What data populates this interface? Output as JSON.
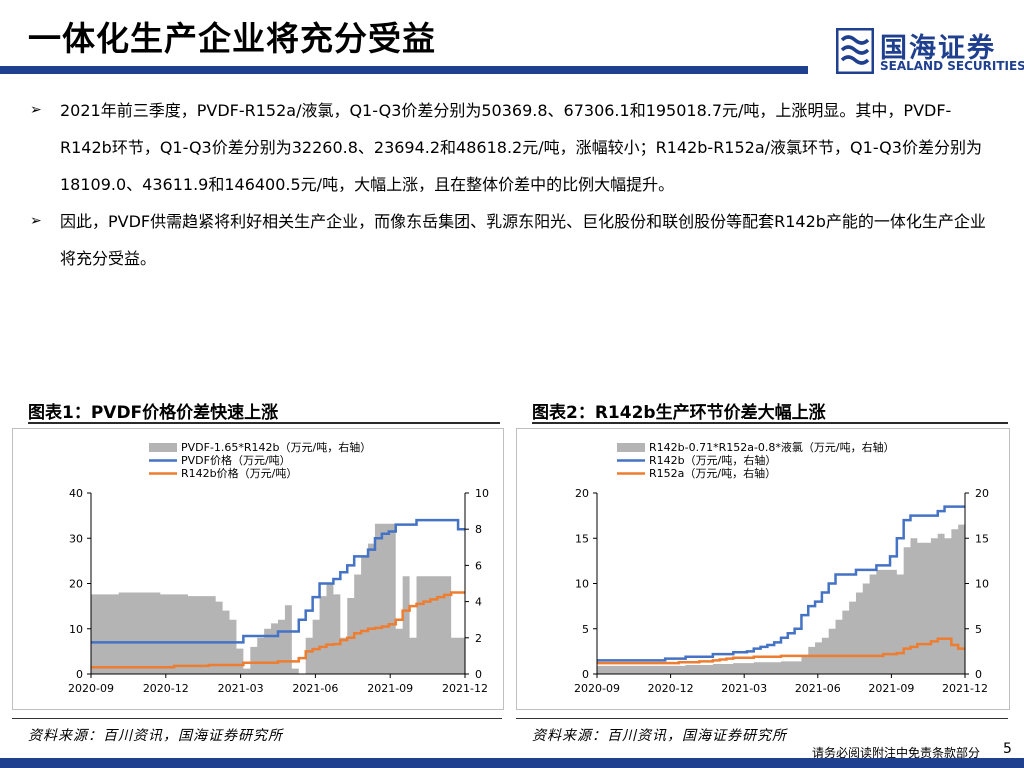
{
  "page": {
    "title": "一体化生产企业将充分受益",
    "logo_cn": "国海证券",
    "logo_en": "SEALAND SECURITIES",
    "bullets": [
      "2021年前三季度，PVDF-R152a/液氯，Q1-Q3价差分别为50369.8、67306.1和195018.7元/吨，上涨明显。其中，PVDF-R142b环节，Q1-Q3价差分别为32260.8、23694.2和48618.2元/吨，涨幅较小；R142b-R152a/液氯环节，Q1-Q3价差分别为18109.0、43611.9和146400.5元/吨，大幅上涨，且在整体价差中的比例大幅提升。",
      "因此，PVDF供需趋紧将利好相关生产企业，而像东岳集团、乳源东阳光、巨化股份和联创股份等配套R142b产能的一体化生产企业将充分受益。"
    ],
    "bullet_mark": "➢",
    "source1": "资料来源：百川资讯，国海证券研究所",
    "source2": "资料来源：百川资讯，国海证券研究所",
    "disclaimer": "请务必阅读附注中免责条款部分",
    "page_number": "5"
  },
  "chart_data": [
    {
      "type": "line",
      "title": "图表1：PVDF价格价差快速上涨",
      "x_ticks": [
        "2020-09",
        "2020-12",
        "2021-03",
        "2021-06",
        "2021-09",
        "2021-12"
      ],
      "ylim": [
        0,
        40
      ],
      "y_ticks": [
        0,
        10,
        20,
        30,
        40
      ],
      "y2lim": [
        0,
        10
      ],
      "y2_ticks": [
        0,
        2,
        4,
        6,
        8,
        10
      ],
      "legend_position": "top",
      "series": [
        {
          "name": "PVDF-1.65*R142b（万元/吨，右轴）",
          "kind": "area",
          "axis": "right",
          "color": "#b4b4b4",
          "values": [
            4.4,
            4.4,
            4.4,
            4.4,
            4.5,
            4.5,
            4.5,
            4.5,
            4.5,
            4.5,
            4.4,
            4.4,
            4.4,
            4.4,
            4.3,
            4.3,
            4.3,
            4.3,
            4.0,
            3.5,
            3.0,
            1.4,
            0.3,
            1.5,
            2.0,
            2.5,
            2.8,
            3.0,
            3.8,
            0.3,
            0,
            2.0,
            3.0,
            4.3,
            5.0,
            4.4,
            2.0,
            4.2,
            5.5,
            6.5,
            7.2,
            8.3,
            8.3,
            8.3,
            2.5,
            5.4,
            2.0,
            5.4,
            5.4,
            5.4,
            5.4,
            5.4,
            2.0,
            2.0,
            2.0
          ]
        },
        {
          "name": "PVDF价格（万元/吨）",
          "kind": "line",
          "axis": "left",
          "color": "#4472c4",
          "values": [
            7.0,
            7.0,
            7.0,
            7.0,
            7.0,
            7.0,
            7.0,
            7.0,
            7.0,
            7.0,
            7.0,
            7.0,
            7.0,
            7.0,
            7.0,
            7.0,
            7.0,
            7.0,
            7.0,
            7.0,
            7.0,
            7.0,
            8.4,
            8.4,
            8.4,
            8.4,
            8.4,
            9.4,
            9.4,
            9.4,
            12.0,
            14.0,
            17.0,
            20.0,
            20.0,
            21.0,
            22.5,
            24.0,
            26.0,
            26.0,
            27.5,
            30.0,
            31.0,
            31.5,
            33.0,
            33.0,
            33.0,
            34.0,
            34.0,
            34.0,
            34.0,
            34.0,
            34.0,
            32.0,
            32.0
          ]
        },
        {
          "name": "R142b价格（万元/吨）",
          "kind": "line",
          "axis": "left",
          "color": "#ed7d31",
          "values": [
            1.5,
            1.5,
            1.5,
            1.5,
            1.5,
            1.5,
            1.5,
            1.5,
            1.5,
            1.5,
            1.5,
            1.5,
            1.8,
            1.8,
            1.8,
            1.8,
            1.8,
            2.0,
            2.0,
            2.0,
            2.0,
            2.0,
            2.5,
            2.5,
            2.5,
            2.5,
            2.5,
            2.8,
            2.8,
            2.8,
            3.5,
            5.0,
            5.5,
            6.0,
            6.5,
            6.6,
            7.5,
            8.0,
            9.0,
            9.5,
            10.0,
            10.2,
            10.5,
            11.0,
            12.0,
            14.0,
            15.0,
            15.5,
            16.0,
            16.5,
            17.0,
            17.5,
            18.0,
            18.0,
            18.0
          ]
        }
      ]
    },
    {
      "type": "line",
      "title": "图表2：R142b生产环节价差大幅上涨",
      "x_ticks": [
        "2020-09",
        "2020-12",
        "2021-03",
        "2021-06",
        "2021-09",
        "2021-12"
      ],
      "ylim": [
        0,
        20
      ],
      "y_ticks": [
        0,
        5,
        10,
        15,
        20
      ],
      "y2lim": [
        0,
        20
      ],
      "y2_ticks": [
        0,
        5,
        10,
        15,
        20
      ],
      "legend_position": "top",
      "series": [
        {
          "name": "R142b-0.71*R152a-0.8*液氯（万元/吨，右轴）",
          "kind": "area",
          "axis": "right",
          "color": "#b4b4b4",
          "values": [
            0.9,
            0.9,
            0.9,
            0.9,
            0.9,
            0.9,
            0.9,
            0.9,
            0.9,
            0.9,
            0.9,
            0.9,
            0.9,
            1.0,
            1.0,
            1.0,
            1.0,
            1.1,
            1.1,
            1.1,
            1.2,
            1.2,
            1.2,
            1.3,
            1.3,
            1.3,
            1.3,
            1.4,
            1.4,
            1.4,
            2.0,
            3.0,
            3.5,
            4.0,
            5.0,
            6.0,
            7.0,
            8.0,
            9.0,
            10.0,
            11.0,
            11.5,
            11.5,
            11.5,
            11.0,
            14.0,
            15.0,
            14.5,
            14.5,
            15.0,
            15.5,
            15.0,
            16.0,
            16.5,
            16.5
          ]
        },
        {
          "name": "R142b（万元/吨，右轴）",
          "kind": "line",
          "axis": "right",
          "color": "#4472c4",
          "values": [
            1.5,
            1.5,
            1.5,
            1.5,
            1.5,
            1.5,
            1.5,
            1.5,
            1.5,
            1.5,
            1.7,
            1.7,
            1.7,
            1.9,
            1.9,
            1.9,
            1.9,
            2.2,
            2.2,
            2.2,
            2.4,
            2.4,
            2.5,
            2.8,
            3.0,
            3.2,
            3.5,
            4.0,
            4.5,
            5.0,
            6.5,
            7.5,
            8.0,
            9.0,
            10.0,
            11.0,
            11.0,
            11.0,
            11.5,
            11.5,
            11.5,
            12.0,
            12.0,
            13.0,
            15.0,
            17.0,
            17.5,
            17.5,
            17.5,
            17.5,
            18.0,
            18.5,
            18.5,
            18.5,
            18.5
          ]
        },
        {
          "name": "R152a（万元/吨，右轴）",
          "kind": "line",
          "axis": "right",
          "color": "#ed7d31",
          "values": [
            1.2,
            1.2,
            1.2,
            1.2,
            1.2,
            1.2,
            1.2,
            1.2,
            1.2,
            1.2,
            1.2,
            1.2,
            1.3,
            1.3,
            1.3,
            1.4,
            1.4,
            1.5,
            1.6,
            1.7,
            1.8,
            1.8,
            1.8,
            1.9,
            1.9,
            1.9,
            1.9,
            2.0,
            2.0,
            2.0,
            2.0,
            2.0,
            2.0,
            2.0,
            2.0,
            2.0,
            2.0,
            2.0,
            2.0,
            2.0,
            2.0,
            2.0,
            2.2,
            2.2,
            2.3,
            2.8,
            3.0,
            3.3,
            3.3,
            3.6,
            3.9,
            3.9,
            3.2,
            2.8,
            2.8
          ]
        }
      ]
    }
  ]
}
